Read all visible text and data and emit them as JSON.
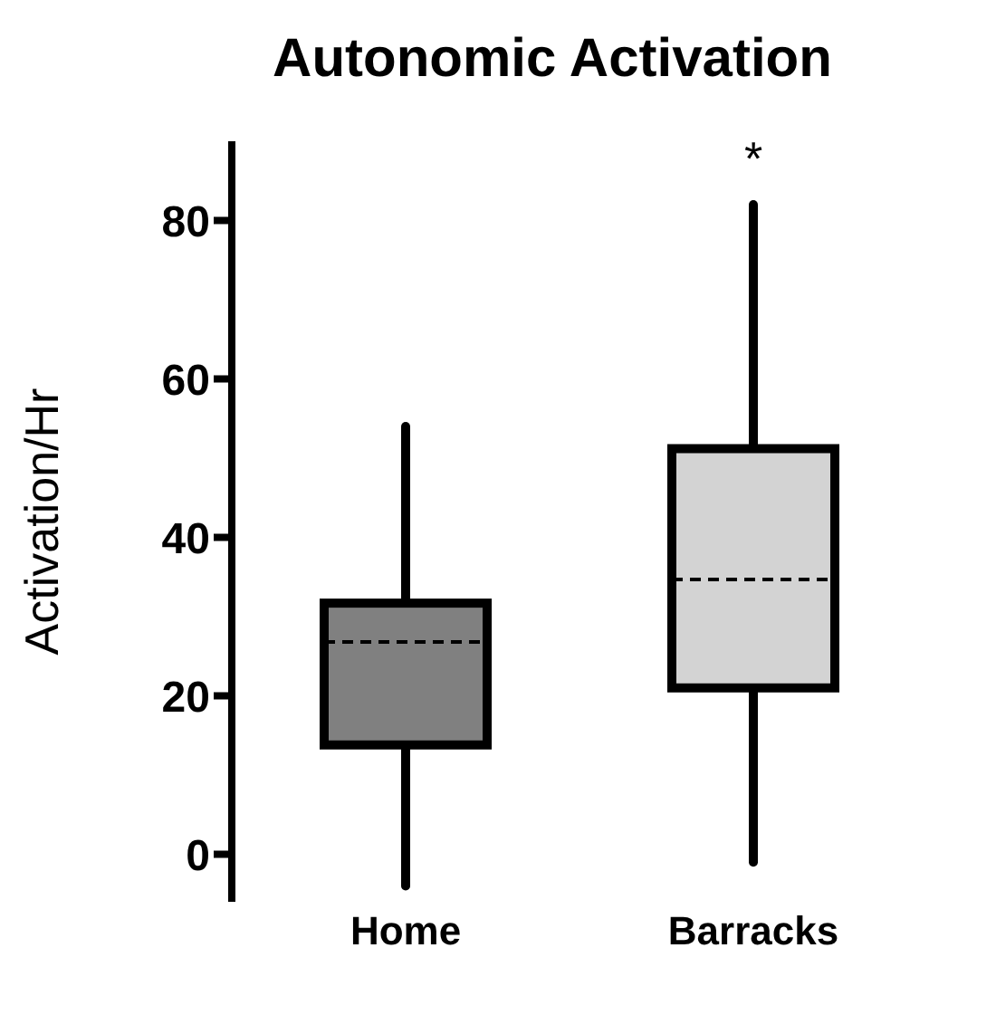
{
  "chart_data": {
    "type": "box",
    "title": "Autonomic Activation",
    "ylabel": "Activation/Hr",
    "categories": [
      "Home",
      "Barracks"
    ],
    "boxes": [
      {
        "low": -4,
        "q1": 13.8,
        "median": 26.8,
        "q3": 31.7,
        "high": 54
      },
      {
        "low": -1,
        "q1": 21,
        "median": 34.7,
        "q3": 51.2,
        "high": 82
      }
    ],
    "colors": [
      "#808080",
      "#d3d3d3"
    ],
    "ylim": [
      -6,
      90
    ],
    "yticks": [
      0,
      20,
      40,
      60,
      80
    ],
    "grid": false,
    "legend": false,
    "annotations": [
      "*"
    ]
  }
}
